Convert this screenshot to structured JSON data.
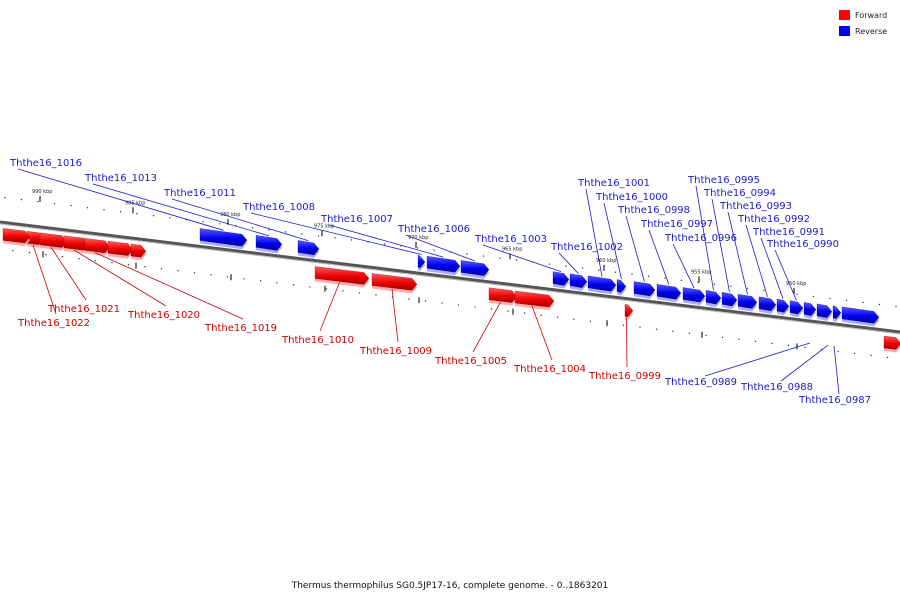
{
  "caption": "Thermus thermophilus SG0.5JP17-16, complete genome. - 0..1863201",
  "legend": {
    "forward": {
      "label": "Forward",
      "color": "#ff0000"
    },
    "reverse": {
      "label": "Reverse",
      "color": "#0000ff"
    }
  },
  "ticks": [
    "990 kbp",
    "985 kbp",
    "980 kbp",
    "975 kbp",
    "970 kbp",
    "965 kbp",
    "960 kbp",
    "955 kbp",
    "950 kbp"
  ],
  "genes": [
    {
      "name": "Ththe16_1022",
      "strand": "forward"
    },
    {
      "name": "Ththe16_1021",
      "strand": "forward"
    },
    {
      "name": "Ththe16_1020",
      "strand": "forward"
    },
    {
      "name": "Ththe16_1019",
      "strand": "forward"
    },
    {
      "name": "Ththe16_1010",
      "strand": "forward"
    },
    {
      "name": "Ththe16_1009",
      "strand": "forward"
    },
    {
      "name": "Ththe16_1005",
      "strand": "forward"
    },
    {
      "name": "Ththe16_1004",
      "strand": "forward"
    },
    {
      "name": "Ththe16_0999",
      "strand": "forward"
    },
    {
      "name": "Ththe16_1016",
      "strand": "reverse"
    },
    {
      "name": "Ththe16_1013",
      "strand": "reverse"
    },
    {
      "name": "Ththe16_1011",
      "strand": "reverse"
    },
    {
      "name": "Ththe16_1008",
      "strand": "reverse"
    },
    {
      "name": "Ththe16_1007",
      "strand": "reverse"
    },
    {
      "name": "Ththe16_1006",
      "strand": "reverse"
    },
    {
      "name": "Ththe16_1003",
      "strand": "reverse"
    },
    {
      "name": "Ththe16_1002",
      "strand": "reverse"
    },
    {
      "name": "Ththe16_1001",
      "strand": "reverse"
    },
    {
      "name": "Ththe16_1000",
      "strand": "reverse"
    },
    {
      "name": "Ththe16_0998",
      "strand": "reverse"
    },
    {
      "name": "Ththe16_0997",
      "strand": "reverse"
    },
    {
      "name": "Ththe16_0996",
      "strand": "reverse"
    },
    {
      "name": "Ththe16_0995",
      "strand": "reverse"
    },
    {
      "name": "Ththe16_0994",
      "strand": "reverse"
    },
    {
      "name": "Ththe16_0993",
      "strand": "reverse"
    },
    {
      "name": "Ththe16_0992",
      "strand": "reverse"
    },
    {
      "name": "Ththe16_0991",
      "strand": "reverse"
    },
    {
      "name": "Ththe16_0990",
      "strand": "reverse"
    },
    {
      "name": "Ththe16_0989",
      "strand": "reverse"
    },
    {
      "name": "Ththe16_0988",
      "strand": "reverse"
    },
    {
      "name": "Ththe16_0987",
      "strand": "reverse"
    }
  ]
}
